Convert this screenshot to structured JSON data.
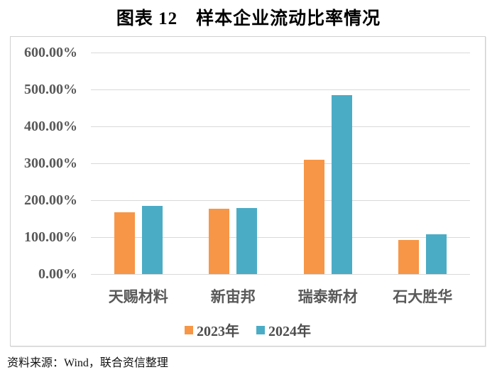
{
  "title": "图表 12　样本企业流动比率情况",
  "source_note": "资料来源：Wind，联合资信整理",
  "colors": {
    "series_2023": "#F79646",
    "series_2024": "#4BACC6",
    "gridline": "#d9d9d9",
    "axis_text": "#595959",
    "frame_border": "#d0d0d0"
  },
  "chart_data": {
    "type": "bar",
    "title": "图表 12　样本企业流动比率情况",
    "categories": [
      "天赐材料",
      "新宙邦",
      "瑞泰新材",
      "石大胜华"
    ],
    "series": [
      {
        "name": "2023年",
        "color": "#F79646",
        "values": [
          168,
          177,
          310,
          93
        ]
      },
      {
        "name": "2024年",
        "color": "#4BACC6",
        "values": [
          185,
          179,
          485,
          107
        ]
      }
    ],
    "xlabel": "",
    "ylabel": "",
    "ylim": [
      0,
      600
    ],
    "y_tick_step": 100,
    "y_tick_labels": [
      "600.00%",
      "500.00%",
      "400.00%",
      "300.00%",
      "200.00%",
      "100.00%",
      "0.00%"
    ],
    "grid": true,
    "legend_position": "bottom"
  }
}
